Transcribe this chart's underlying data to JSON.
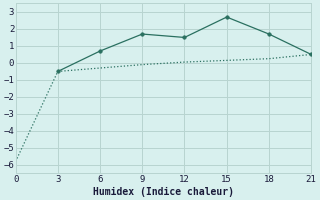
{
  "xlabel": "Humidex (Indice chaleur)",
  "background_color": "#d8f0ee",
  "grid_color": "#b8d4d0",
  "line1_x": [
    3,
    6,
    9,
    12,
    15,
    18,
    21
  ],
  "line1_y": [
    -0.5,
    0.7,
    1.7,
    1.5,
    2.7,
    1.7,
    0.5
  ],
  "line2_x": [
    0,
    3,
    9,
    12,
    15,
    18,
    21
  ],
  "line2_y": [
    -5.8,
    -0.5,
    -0.1,
    0.05,
    0.15,
    0.25,
    0.5
  ],
  "line_color": "#2a7060",
  "marker_color": "#2a7060",
  "xlim": [
    0,
    21
  ],
  "ylim": [
    -6.5,
    3.5
  ],
  "xticks": [
    0,
    3,
    6,
    9,
    12,
    15,
    18,
    21
  ],
  "yticks": [
    -6,
    -5,
    -4,
    -3,
    -2,
    -1,
    0,
    1,
    2,
    3
  ],
  "tick_fontsize": 6.5,
  "xlabel_fontsize": 7
}
